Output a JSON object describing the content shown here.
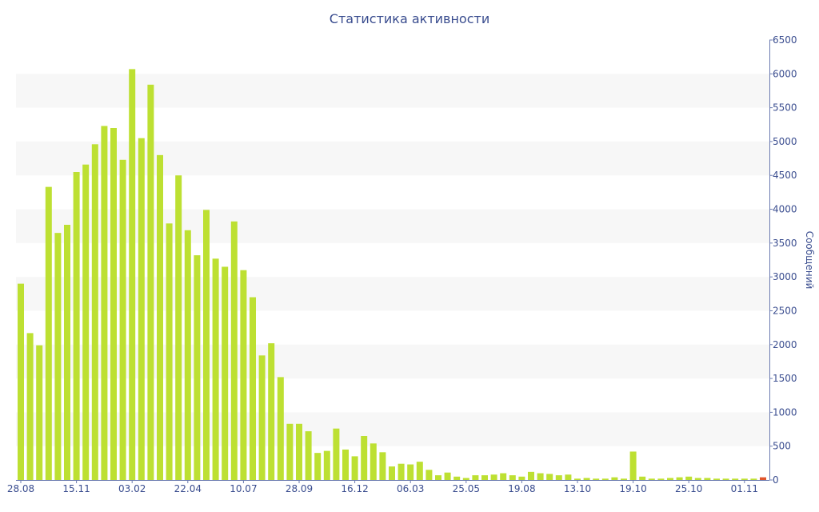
{
  "chart_data": {
    "type": "bar",
    "title": "Статистика активности",
    "xlabel": "",
    "ylabel": "Сообщений",
    "ylim": [
      0,
      6500
    ],
    "yticks": [
      0,
      500,
      1000,
      1500,
      2000,
      2500,
      3000,
      3500,
      4000,
      4500,
      5000,
      5500,
      6000,
      6500
    ],
    "y_axis_side": "right",
    "grid": "horizontal-bands",
    "x_tick_labels": [
      {
        "index": 0,
        "label": "28.08"
      },
      {
        "index": 6,
        "label": "15.11"
      },
      {
        "index": 12,
        "label": "03.02"
      },
      {
        "index": 18,
        "label": "22.04"
      },
      {
        "index": 24,
        "label": "10.07"
      },
      {
        "index": 30,
        "label": "28.09"
      },
      {
        "index": 36,
        "label": "16.12"
      },
      {
        "index": 42,
        "label": "06.03"
      },
      {
        "index": 48,
        "label": "25.05"
      },
      {
        "index": 54,
        "label": "19.08"
      },
      {
        "index": 60,
        "label": "13.10"
      },
      {
        "index": 66,
        "label": "19.10"
      },
      {
        "index": 72,
        "label": "25.10"
      },
      {
        "index": 78,
        "label": "01.11"
      }
    ],
    "bar_color": "#bde032",
    "last_bar_color": "#e0552b",
    "values": [
      2900,
      2170,
      1990,
      4330,
      3650,
      3770,
      4550,
      4660,
      4960,
      5230,
      5200,
      4730,
      6070,
      5050,
      5840,
      4800,
      3790,
      4500,
      3690,
      3320,
      3990,
      3270,
      3150,
      3820,
      3100,
      2700,
      1840,
      2020,
      1520,
      830,
      830,
      720,
      400,
      430,
      760,
      450,
      350,
      650,
      540,
      410,
      200,
      240,
      230,
      270,
      150,
      70,
      110,
      50,
      30,
      70,
      70,
      80,
      100,
      70,
      50,
      120,
      100,
      90,
      70,
      80,
      20,
      30,
      20,
      20,
      40,
      20,
      420,
      50,
      20,
      20,
      30,
      40,
      50,
      30,
      30,
      20,
      20,
      20,
      20,
      20,
      40
    ]
  }
}
